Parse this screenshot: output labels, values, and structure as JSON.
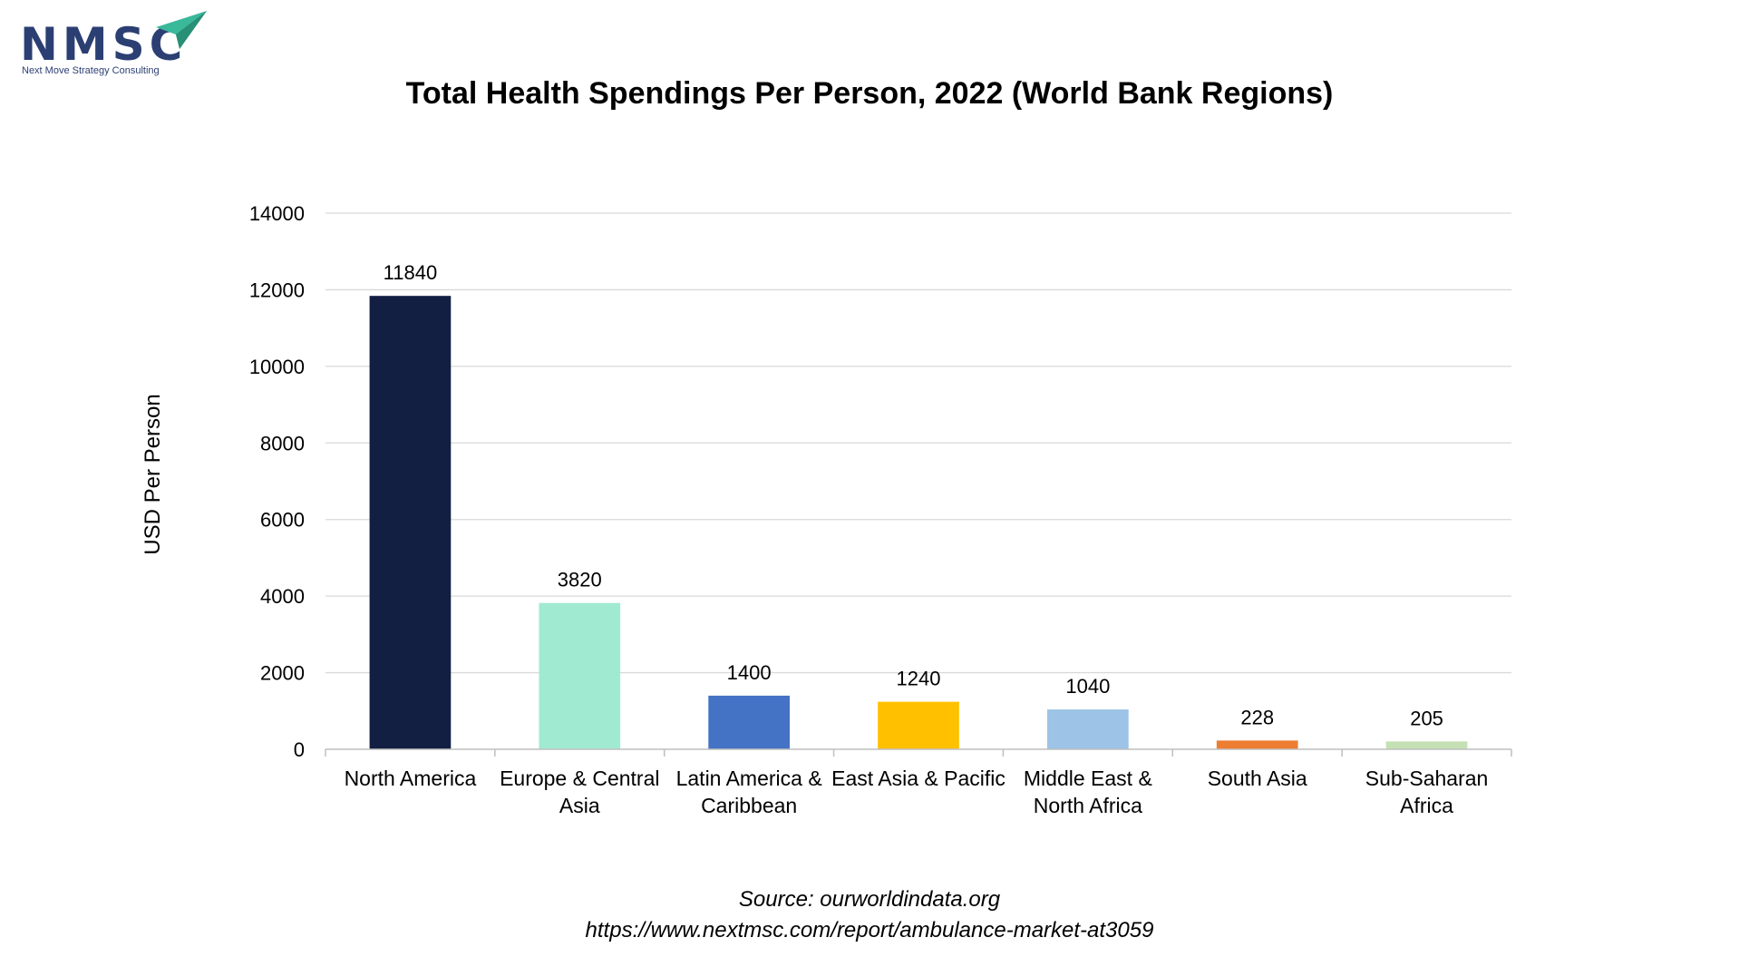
{
  "logo": {
    "text": "NMSC",
    "tagline": "Next Move Strategy Consulting"
  },
  "chart_data": {
    "type": "bar",
    "title": "Total Health Spendings Per Person, 2022 (World Bank Regions)",
    "xlabel": "",
    "ylabel": "USD Per Person",
    "ylim": [
      0,
      14000
    ],
    "yticks": [
      0,
      2000,
      4000,
      6000,
      8000,
      10000,
      12000,
      14000
    ],
    "grid": true,
    "categories": [
      [
        "North America"
      ],
      [
        "Europe & Central",
        "Asia"
      ],
      [
        "Latin America &",
        "Caribbean"
      ],
      [
        "East Asia & Pacific"
      ],
      [
        "Middle East &",
        "North Africa"
      ],
      [
        "South Asia"
      ],
      [
        "Sub-Saharan",
        "Africa"
      ]
    ],
    "values": [
      11840,
      3820,
      1400,
      1240,
      1040,
      228,
      205
    ],
    "colors": [
      "#131f42",
      "#a1ead2",
      "#4472c4",
      "#ffc000",
      "#9dc3e6",
      "#ed7d31",
      "#c5e0b4"
    ]
  },
  "source": {
    "line1": "Source: ourworldindata.org",
    "line2": "https://www.nextmsc.com/report/ambulance-market-at3059"
  }
}
